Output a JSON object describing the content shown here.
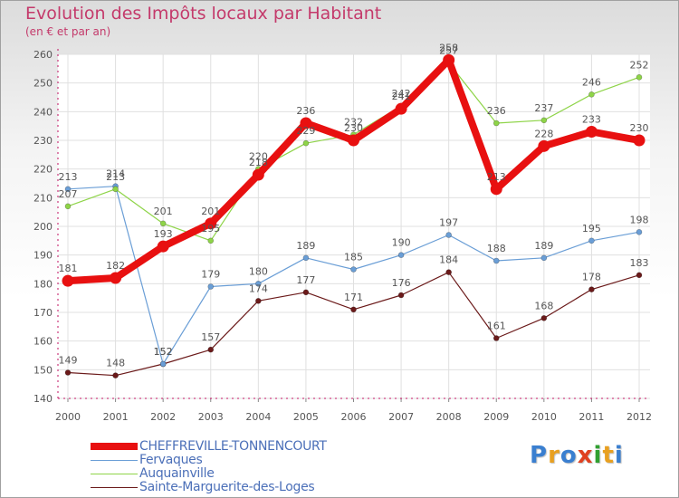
{
  "header": {
    "title": "Evolution des Impôts locaux par Habitant",
    "subtitle": "(en € et par an)"
  },
  "logo": {
    "text": "Proxiti",
    "colors": [
      "#3a7fd0",
      "#e8a020",
      "#3a7fd0",
      "#e04020",
      "#30a030",
      "#e8a020",
      "#3a7fd0"
    ]
  },
  "colors": {
    "title": "#c43a6b",
    "axis_text": "#555555",
    "grid": "#e0e0e0",
    "axis_line": "#c01060"
  },
  "chart_data": {
    "type": "line",
    "title": "Evolution des Impôts locaux par Habitant",
    "subtitle": "(en € et par an)",
    "xlabel": "",
    "ylabel": "",
    "ylim": [
      140,
      260
    ],
    "yticks": [
      140,
      150,
      160,
      170,
      180,
      190,
      200,
      210,
      220,
      230,
      240,
      250,
      260
    ],
    "categories": [
      "2000",
      "2001",
      "2002",
      "2003",
      "2004",
      "2005",
      "2006",
      "2007",
      "2008",
      "2009",
      "2010",
      "2011",
      "2012"
    ],
    "series": [
      {
        "name": "CHEFFREVILLE-TONNENCOURT",
        "color": "#e81010",
        "values": [
          181,
          182,
          193,
          201,
          218,
          236,
          230,
          241,
          258,
          213,
          228,
          233,
          230
        ]
      },
      {
        "name": "Fervaques",
        "color": "#6a9ed6",
        "values": [
          213,
          214,
          152,
          179,
          180,
          189,
          185,
          190,
          197,
          188,
          189,
          195,
          198
        ]
      },
      {
        "name": "Auquainville",
        "color": "#8ed448",
        "values": [
          207,
          213,
          201,
          195,
          220,
          229,
          232,
          242,
          257,
          236,
          237,
          246,
          252
        ]
      },
      {
        "name": "Sainte-Marguerite-des-Loges",
        "color": "#6b1a1a",
        "values": [
          149,
          148,
          152,
          157,
          174,
          177,
          171,
          176,
          184,
          161,
          168,
          178,
          183
        ]
      }
    ]
  }
}
